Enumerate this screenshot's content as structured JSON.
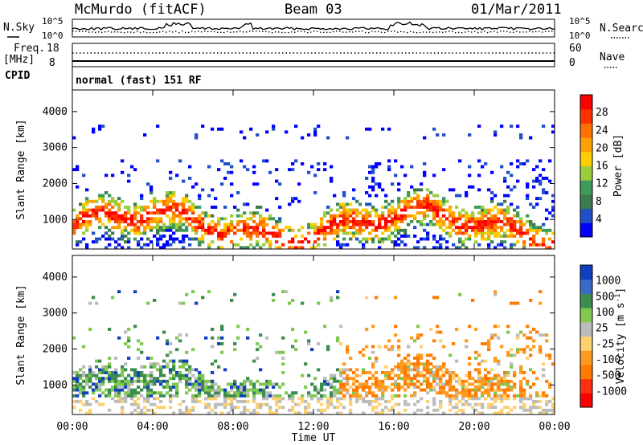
{
  "header": {
    "station": "McMurdo (fitACF)",
    "beam": "Beam 03",
    "date": "01/Mar/2011"
  },
  "top_panel": {
    "left_labels": {
      "nsky": "N.Sky",
      "freq": "Freq.",
      "freq_unit": "[MHz]",
      "cpid": "CPID"
    },
    "right_labels": {
      "nsearch": "N.Search",
      "nave": "Nave"
    },
    "noise_ticks_left": [
      "10^5",
      "10^0"
    ],
    "noise_ticks_right": [
      "10^5",
      "10^0"
    ],
    "freq_ticks": [
      "18",
      "8"
    ],
    "nave_ticks": [
      "60",
      "0"
    ],
    "cpid_text": "normal (fast) 151 RF"
  },
  "colors": {
    "power_scale": [
      "#0000ff",
      "#2050c8",
      "#3c7a50",
      "#3c9a5a",
      "#9ccd3a",
      "#ffcc00",
      "#ffa000",
      "#ff7000",
      "#ff3000",
      "#ff0000"
    ],
    "velocity_scale": [
      "#1040c0",
      "#3c6ac8",
      "#3c8c50",
      "#80c850",
      "#bcbcbc",
      "#ffd070",
      "#ff9a20",
      "#ff7a00",
      "#ff3010",
      "#ff0000"
    ]
  },
  "chart_data": [
    {
      "type": "heatmap",
      "title": "",
      "quantity": "Power",
      "ylabel": "Slant Range [km]",
      "ylim": [
        180,
        4600
      ],
      "yticks": [
        "1000",
        "2000",
        "3000",
        "4000"
      ],
      "colorbar_label": "Power [dB]",
      "colorbar_ticks": [
        "4",
        "8",
        "12",
        "16",
        "20",
        "24",
        "28"
      ],
      "colorbar_range": [
        0,
        30
      ],
      "xlim": [
        "00:00",
        "24:00"
      ],
      "grid": true
    },
    {
      "type": "heatmap",
      "title": "",
      "quantity": "Velocity",
      "ylabel": "Slant Range [km]",
      "ylim": [
        180,
        4600
      ],
      "yticks": [
        "1000",
        "2000",
        "3000",
        "4000"
      ],
      "colorbar_label": "Velocity [m s^-1]",
      "colorbar_ticks": [
        "1000",
        "500",
        "100",
        "25",
        "-25",
        "-100",
        "-500",
        "-1000"
      ],
      "xlabel": "Time UT",
      "xticks": [
        "00:00",
        "04:00",
        "08:00",
        "12:00",
        "16:00",
        "20:00",
        "00:00"
      ],
      "xlim": [
        "00:00",
        "24:00"
      ],
      "grid": true
    }
  ]
}
